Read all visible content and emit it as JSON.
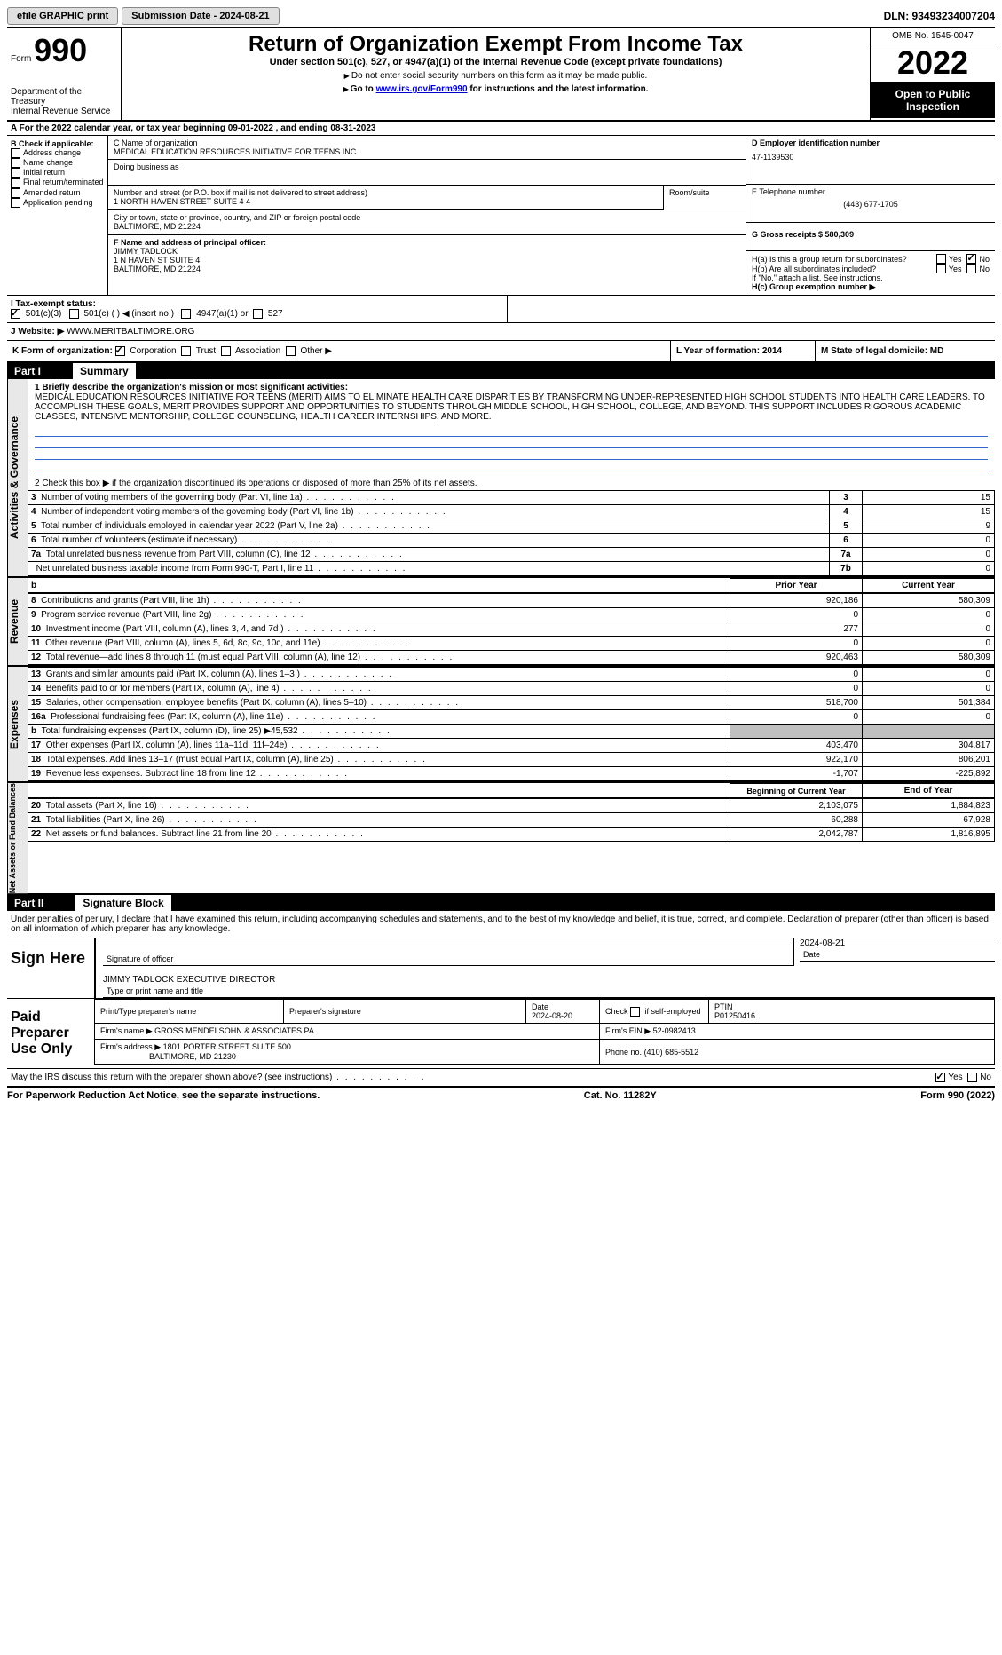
{
  "topbar": {
    "efile": "efile GRAPHIC print",
    "submission_label": "Submission Date - 2024-08-21",
    "dln_label": "DLN: 93493234007204"
  },
  "header": {
    "form_word": "Form",
    "form_num": "990",
    "dept": "Department of the Treasury",
    "irs": "Internal Revenue Service",
    "title": "Return of Organization Exempt From Income Tax",
    "subtitle": "Under section 501(c), 527, or 4947(a)(1) of the Internal Revenue Code (except private foundations)",
    "note1": "Do not enter social security numbers on this form as it may be made public.",
    "note2_pre": "Go to ",
    "note2_link": "www.irs.gov/Form990",
    "note2_post": " for instructions and the latest information.",
    "omb": "OMB No. 1545-0047",
    "year": "2022",
    "open_public": "Open to Public Inspection"
  },
  "row_a": "A For the 2022 calendar year, or tax year beginning 09-01-2022    , and ending 08-31-2023",
  "col_b": {
    "header": "B Check if applicable:",
    "items": [
      "Address change",
      "Name change",
      "Initial return",
      "Final return/terminated",
      "Amended return",
      "Application pending"
    ]
  },
  "col_c": {
    "name_label": "C Name of organization",
    "name": "MEDICAL EDUCATION RESOURCES INITIATIVE FOR TEENS INC",
    "dba_label": "Doing business as",
    "addr_label": "Number and street (or P.O. box if mail is not delivered to street address)",
    "room_label": "Room/suite",
    "addr": "1 NORTH HAVEN STREET SUITE 4 4",
    "city_label": "City or town, state or province, country, and ZIP or foreign postal code",
    "city": "BALTIMORE, MD  21224",
    "f_label": "F Name and address of principal officer:",
    "f_name": "JIMMY TADLOCK",
    "f_addr1": "1 N HAVEN ST SUITE 4",
    "f_addr2": "BALTIMORE, MD  21224"
  },
  "col_d": {
    "ein_label": "D Employer identification number",
    "ein": "47-1139530",
    "phone_label": "E Telephone number",
    "phone": "(443) 677-1705",
    "gross_label": "G Gross receipts $ 580,309",
    "ha_label": "H(a)  Is this a group return for subordinates?",
    "hb_label": "H(b)  Are all subordinates included?",
    "hb_note": "If \"No,\" attach a list. See instructions.",
    "hc_label": "H(c)  Group exemption number ▶",
    "yes": "Yes",
    "no": "No"
  },
  "row_i": {
    "label": "I  Tax-exempt status:",
    "opt1": "501(c)(3)",
    "opt2": "501(c) (  ) ◀ (insert no.)",
    "opt3": "4947(a)(1) or",
    "opt4": "527"
  },
  "row_j": {
    "label": "J  Website: ▶",
    "value": "WWW.MERITBALTIMORE.ORG"
  },
  "row_k": {
    "label": "K Form of organization:",
    "opts": [
      "Corporation",
      "Trust",
      "Association",
      "Other ▶"
    ]
  },
  "row_l": {
    "label": "L Year of formation: 2014",
    "m_label": "M State of legal domicile: MD"
  },
  "part1": {
    "title": "Part I",
    "subtitle": "Summary",
    "q1": "1  Briefly describe the organization's mission or most significant activities:",
    "mission": "MEDICAL EDUCATION RESOURCES INITIATIVE FOR TEENS (MERIT) AIMS TO ELIMINATE HEALTH CARE DISPARITIES BY TRANSFORMING UNDER-REPRESENTED HIGH SCHOOL STUDENTS INTO HEALTH CARE LEADERS. TO ACCOMPLISH THESE GOALS, MERIT PROVIDES SUPPORT AND OPPORTUNITIES TO STUDENTS THROUGH MIDDLE SCHOOL, HIGH SCHOOL, COLLEGE, AND BEYOND. THIS SUPPORT INCLUDES RIGOROUS ACADEMIC CLASSES, INTENSIVE MENTORSHIP, COLLEGE COUNSELING, HEALTH CAREER INTERNSHIPS, AND MORE.",
    "q2": "2   Check this box ▶     if the organization discontinued its operations or disposed of more than 25% of its net assets.",
    "activities_label": "Activities & Governance",
    "rows": [
      {
        "n": "3",
        "label": "Number of voting members of the governing body (Part VI, line 1a)",
        "k": "3",
        "v": "15"
      },
      {
        "n": "4",
        "label": "Number of independent voting members of the governing body (Part VI, line 1b)",
        "k": "4",
        "v": "15"
      },
      {
        "n": "5",
        "label": "Total number of individuals employed in calendar year 2022 (Part V, line 2a)",
        "k": "5",
        "v": "9"
      },
      {
        "n": "6",
        "label": "Total number of volunteers (estimate if necessary)",
        "k": "6",
        "v": "0"
      },
      {
        "n": "7a",
        "label": "Total unrelated business revenue from Part VIII, column (C), line 12",
        "k": "7a",
        "v": "0"
      },
      {
        "n": "",
        "label": "Net unrelated business taxable income from Form 990-T, Part I, line 11",
        "k": "7b",
        "v": "0"
      }
    ]
  },
  "revenue": {
    "label": "Revenue",
    "header_b": "b",
    "col_prior": "Prior Year",
    "col_current": "Current Year",
    "rows": [
      {
        "n": "8",
        "label": "Contributions and grants (Part VIII, line 1h)",
        "p": "920,186",
        "c": "580,309"
      },
      {
        "n": "9",
        "label": "Program service revenue (Part VIII, line 2g)",
        "p": "0",
        "c": "0"
      },
      {
        "n": "10",
        "label": "Investment income (Part VIII, column (A), lines 3, 4, and 7d )",
        "p": "277",
        "c": "0"
      },
      {
        "n": "11",
        "label": "Other revenue (Part VIII, column (A), lines 5, 6d, 8c, 9c, 10c, and 11e)",
        "p": "0",
        "c": "0"
      },
      {
        "n": "12",
        "label": "Total revenue—add lines 8 through 11 (must equal Part VIII, column (A), line 12)",
        "p": "920,463",
        "c": "580,309"
      }
    ]
  },
  "expenses": {
    "label": "Expenses",
    "rows": [
      {
        "n": "13",
        "label": "Grants and similar amounts paid (Part IX, column (A), lines 1–3 )",
        "p": "0",
        "c": "0"
      },
      {
        "n": "14",
        "label": "Benefits paid to or for members (Part IX, column (A), line 4)",
        "p": "0",
        "c": "0"
      },
      {
        "n": "15",
        "label": "Salaries, other compensation, employee benefits (Part IX, column (A), lines 5–10)",
        "p": "518,700",
        "c": "501,384"
      },
      {
        "n": "16a",
        "label": "Professional fundraising fees (Part IX, column (A), line 11e)",
        "p": "0",
        "c": "0"
      },
      {
        "n": "b",
        "label": "Total fundraising expenses (Part IX, column (D), line 25) ▶45,532",
        "p": "",
        "c": "",
        "shaded": true
      },
      {
        "n": "17",
        "label": "Other expenses (Part IX, column (A), lines 11a–11d, 11f–24e)",
        "p": "403,470",
        "c": "304,817"
      },
      {
        "n": "18",
        "label": "Total expenses. Add lines 13–17 (must equal Part IX, column (A), line 25)",
        "p": "922,170",
        "c": "806,201"
      },
      {
        "n": "19",
        "label": "Revenue less expenses. Subtract line 18 from line 12",
        "p": "-1,707",
        "c": "-225,892"
      }
    ]
  },
  "netassets": {
    "label": "Net Assets or Fund Balances",
    "col_begin": "Beginning of Current Year",
    "col_end": "End of Year",
    "rows": [
      {
        "n": "20",
        "label": "Total assets (Part X, line 16)",
        "p": "2,103,075",
        "c": "1,884,823"
      },
      {
        "n": "21",
        "label": "Total liabilities (Part X, line 26)",
        "p": "60,288",
        "c": "67,928"
      },
      {
        "n": "22",
        "label": "Net assets or fund balances. Subtract line 21 from line 20",
        "p": "2,042,787",
        "c": "1,816,895"
      }
    ]
  },
  "part2": {
    "title": "Part II",
    "subtitle": "Signature Block",
    "penalty": "Under penalties of perjury, I declare that I have examined this return, including accompanying schedules and statements, and to the best of my knowledge and belief, it is true, correct, and complete. Declaration of preparer (other than officer) is based on all information of which preparer has any knowledge.",
    "sign_here": "Sign Here",
    "sig_officer": "Signature of officer",
    "date": "Date",
    "sig_date": "2024-08-21",
    "name_title": "JIMMY TADLOCK  EXECUTIVE DIRECTOR",
    "type_name": "Type or print name and title",
    "paid": "Paid Preparer Use Only",
    "p_name_label": "Print/Type preparer's name",
    "p_sig_label": "Preparer's signature",
    "p_date": "2024-08-20",
    "p_check": "Check        if self-employed",
    "ptin_label": "PTIN",
    "ptin": "P01250416",
    "firm_name_label": "Firm's name    ▶",
    "firm_name": "GROSS MENDELSOHN & ASSOCIATES PA",
    "firm_ein_label": "Firm's EIN ▶",
    "firm_ein": "52-0982413",
    "firm_addr_label": "Firm's address ▶",
    "firm_addr": "1801 PORTER STREET SUITE 500",
    "firm_city": "BALTIMORE, MD  21230",
    "phone_label": "Phone no.",
    "phone": "(410) 685-5512",
    "discuss": "May the IRS discuss this return with the preparer shown above? (see instructions)"
  },
  "footer": {
    "left": "For Paperwork Reduction Act Notice, see the separate instructions.",
    "center": "Cat. No. 11282Y",
    "right": "Form 990 (2022)"
  }
}
